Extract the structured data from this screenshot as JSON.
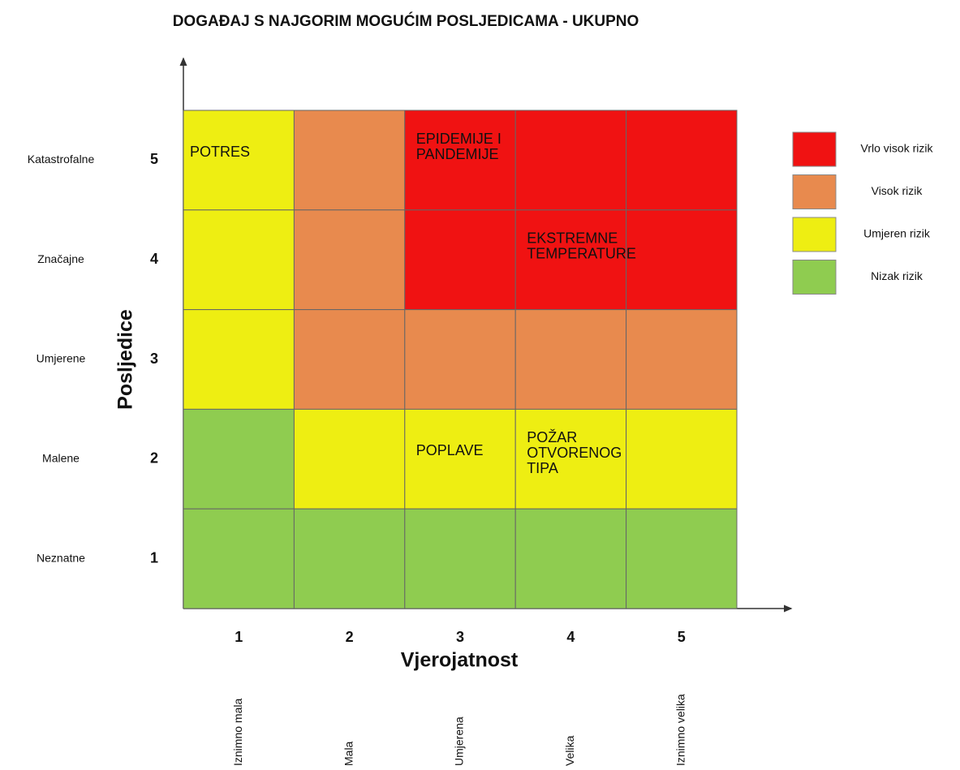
{
  "title": "DOGAĐAJ S NAJGORIM MOGUĆIM POSLJEDICAMA - UKUPNO",
  "y_axis_label": "Posljedice",
  "x_axis_label": "Vjerojatnost",
  "columns": [
    {
      "level": 1,
      "name": "Iznimno mala"
    },
    {
      "level": 2,
      "name": "Mala"
    },
    {
      "level": 3,
      "name": "Umjerena"
    },
    {
      "level": 4,
      "name": "Velika"
    },
    {
      "level": 5,
      "name": "Iznimno velika"
    }
  ],
  "rows": [
    {
      "level": 5,
      "name": "Katastrofalne",
      "cells": [
        2,
        1,
        0,
        0,
        0
      ]
    },
    {
      "level": 4,
      "name": "Značajne",
      "cells": [
        2,
        1,
        0,
        0,
        0
      ]
    },
    {
      "level": 3,
      "name": "Umjerene",
      "cells": [
        2,
        1,
        1,
        1,
        1
      ]
    },
    {
      "level": 2,
      "name": "Malene",
      "cells": [
        3,
        2,
        2,
        2,
        2
      ]
    },
    {
      "level": 1,
      "name": "Neznatne",
      "cells": [
        3,
        3,
        3,
        3,
        3
      ]
    }
  ],
  "legend": [
    {
      "label": "Vrlo visok rizik",
      "color": "#f01212"
    },
    {
      "label": "Visok rizik",
      "color": "#e88a4e"
    },
    {
      "label": "Umjeren rizik",
      "color": "#eeee12"
    },
    {
      "label": "Nizak rizik",
      "color": "#8fcc50"
    }
  ],
  "events": [
    {
      "lines": [
        "POTRES"
      ],
      "row": 0,
      "col": 0
    },
    {
      "lines": [
        "EPIDEMIJE I",
        "PANDEMIJE"
      ],
      "row": 0,
      "col": 2
    },
    {
      "lines": [
        "EKSTREMNE",
        "TEMPERATURE"
      ],
      "row": 1,
      "col": 3
    },
    {
      "lines": [
        "POPLAVE"
      ],
      "row": 3,
      "col": 2
    },
    {
      "lines": [
        "POŽAR",
        "OTVORENOG",
        "TIPA"
      ],
      "row": 3,
      "col": 3
    }
  ]
}
